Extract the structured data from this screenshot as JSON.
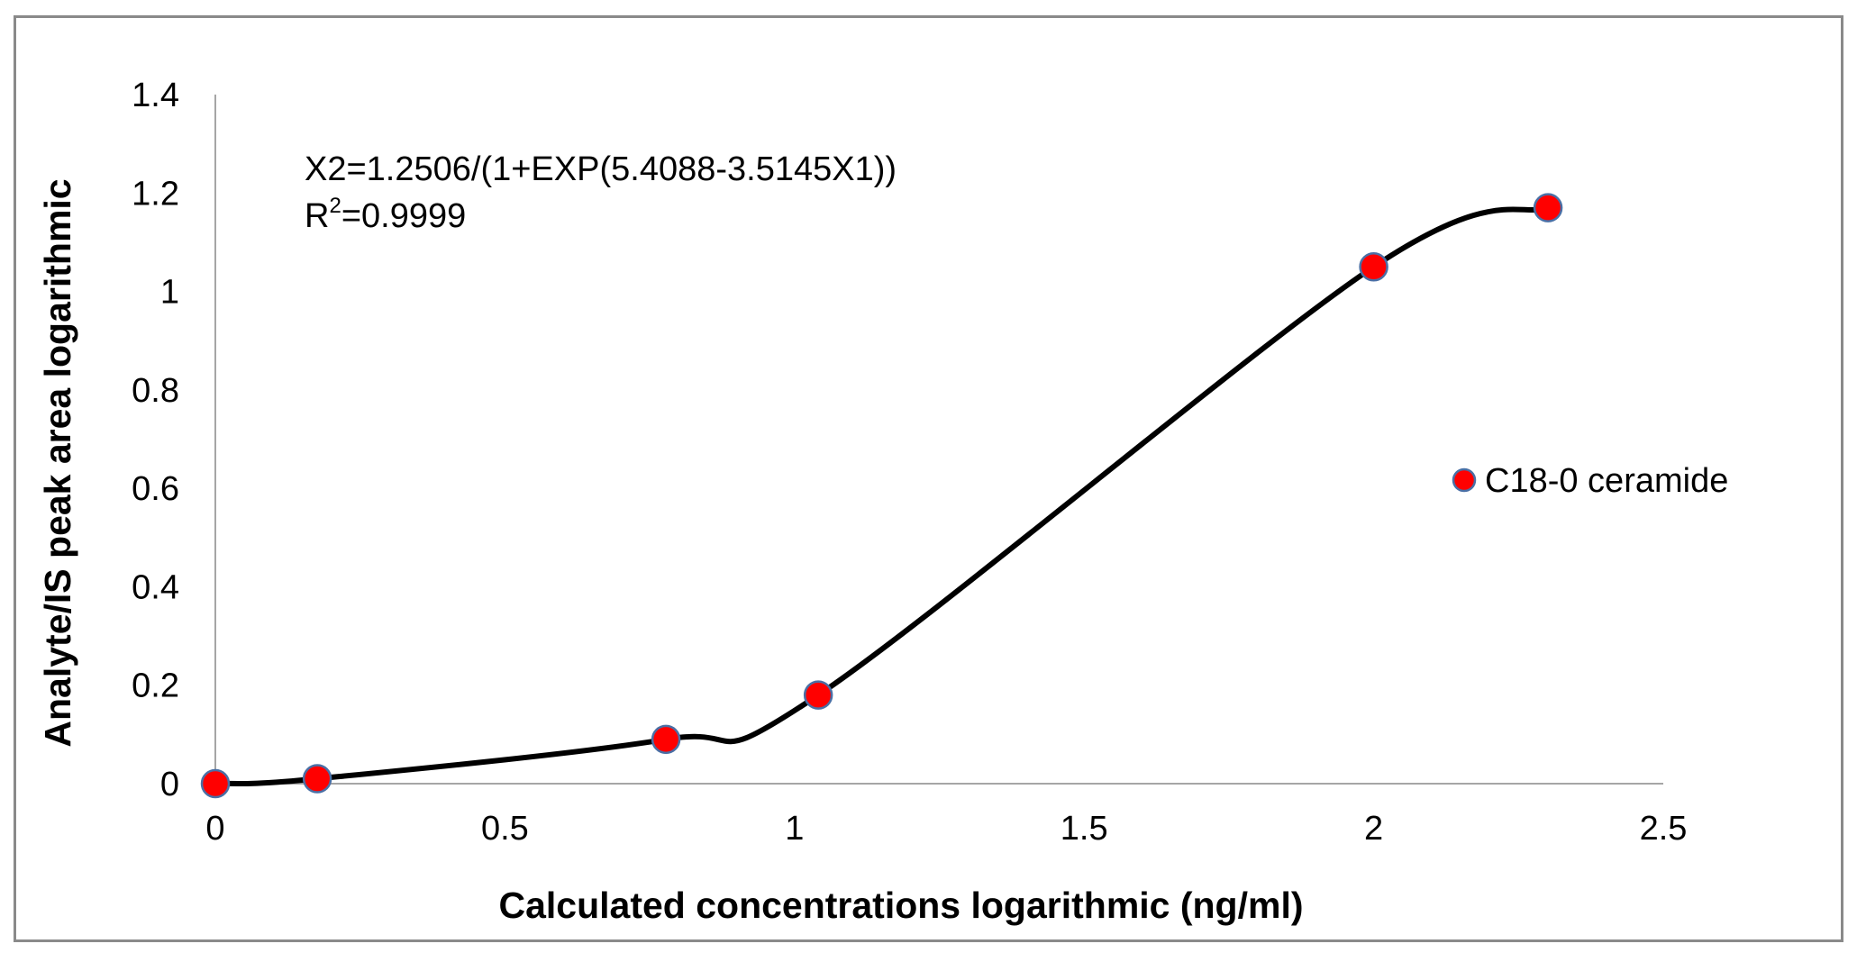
{
  "chart_data": {
    "type": "scatter",
    "series": [
      {
        "name": "C18-0 ceramide",
        "x": [
          0,
          0.176,
          0.778,
          1.041,
          2.0,
          2.301
        ],
        "y": [
          0,
          0.01,
          0.09,
          0.18,
          1.05,
          1.17
        ]
      }
    ],
    "fit_curve": {
      "equation": "X2=1.2506/(1+EXP(5.4088-3.5145X1))",
      "r_squared_label": "R",
      "r_squared_sup": "2",
      "r_squared_value": "=0.9999"
    },
    "xlabel": "Calculated concentrations logarithmic  (ng/ml)",
    "ylabel": "Analyte/IS  peak area logarithmic",
    "xlim": [
      0,
      2.5
    ],
    "ylim": [
      0,
      1.4
    ],
    "xticks": [
      "0",
      "0.5",
      "1",
      "1.5",
      "2",
      "2.5"
    ],
    "yticks": [
      "0",
      "0.2",
      "0.4",
      "0.6",
      "0.8",
      "1",
      "1.2",
      "1.4"
    ],
    "grid": false,
    "legend_position": "right",
    "colors": {
      "marker_fill": "#ff0000",
      "marker_stroke": "#4a6fa5",
      "curve": "#000000",
      "axis": "#a6a6a6"
    }
  }
}
